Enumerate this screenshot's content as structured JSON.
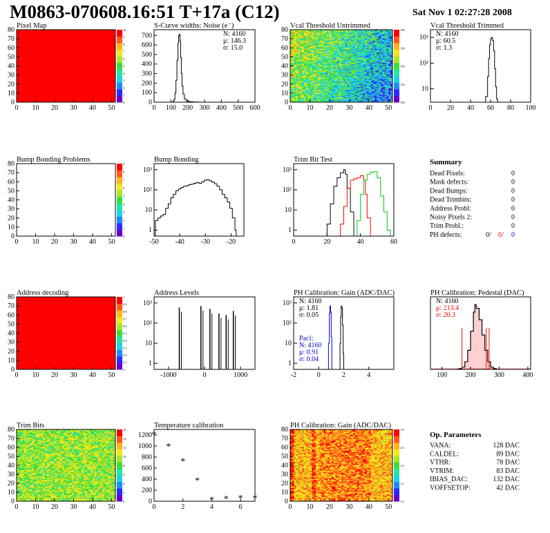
{
  "header": {
    "title": "M0863-070608.16:51 T+17a (C12)",
    "date": "Sat Nov  1 02:27:28 2008"
  },
  "chart_data": [
    {
      "id": "pixel-map",
      "type": "heatmap",
      "title": "Pixel Map",
      "xlim": [
        0,
        52
      ],
      "ylim": [
        0,
        80
      ],
      "xticks": [
        0,
        10,
        20,
        30,
        40,
        50
      ],
      "yticks": [
        0,
        10,
        20,
        30,
        40,
        50,
        60,
        70,
        80
      ],
      "fill": "uniform-red",
      "palette_ticks": [
        "0",
        "1",
        "2",
        "3",
        "4",
        "5",
        "6",
        "7",
        "8",
        "9",
        "10"
      ],
      "colors": {
        "fill": "#ff0000"
      }
    },
    {
      "id": "scurve-widths",
      "type": "histogram",
      "title": "S-Curve widths: Noise (e⁻)",
      "xlim": [
        0,
        600
      ],
      "ylim": [
        0,
        760
      ],
      "xticks": [
        0,
        100,
        200,
        300,
        400,
        500,
        600
      ],
      "yticks": [
        0,
        100,
        200,
        300,
        400,
        500,
        600,
        700
      ],
      "points": [
        [
          80,
          0
        ],
        [
          105,
          2
        ],
        [
          112,
          8
        ],
        [
          118,
          30
        ],
        [
          124,
          95
        ],
        [
          130,
          230
        ],
        [
          136,
          440
        ],
        [
          142,
          620
        ],
        [
          146,
          700
        ],
        [
          150,
          710
        ],
        [
          154,
          640
        ],
        [
          158,
          470
        ],
        [
          162,
          300
        ],
        [
          166,
          170
        ],
        [
          172,
          85
        ],
        [
          180,
          35
        ],
        [
          190,
          14
        ],
        [
          205,
          5
        ],
        [
          230,
          2
        ],
        [
          260,
          1
        ],
        [
          290,
          0
        ]
      ],
      "stats": {
        "N": "N: 4160",
        "mu": "μ: 146.3",
        "sigma": "σ: 15.0"
      }
    },
    {
      "id": "vcal-untrimmed",
      "type": "heatmap",
      "title": "Vcal Threshold Untrimmed",
      "xlim": [
        0,
        52
      ],
      "ylim": [
        0,
        80
      ],
      "xticks": [
        0,
        10,
        20,
        30,
        40,
        50
      ],
      "yticks": [
        0,
        10,
        20,
        30,
        40,
        50,
        60,
        70,
        80
      ],
      "fill": "noisy-green-to-blue",
      "palette_ticks": [
        "100",
        "110",
        "120",
        "130",
        "140"
      ]
    },
    {
      "id": "vcal-trimmed",
      "type": "histogram",
      "title": "Vcal Threshold Trimmed",
      "xlim": [
        0,
        100
      ],
      "yscale": "log",
      "ylim": [
        3,
        2000
      ],
      "xticks": [
        0,
        20,
        40,
        60,
        80,
        100
      ],
      "ytick_labels": [
        "10",
        "10²",
        "10³"
      ],
      "ytick_values": [
        10,
        100,
        1000
      ],
      "points": [
        [
          50,
          3
        ],
        [
          55,
          5
        ],
        [
          57,
          30
        ],
        [
          58,
          150
        ],
        [
          59,
          520
        ],
        [
          60,
          900
        ],
        [
          61,
          1000
        ],
        [
          62,
          750
        ],
        [
          63,
          300
        ],
        [
          64,
          60
        ],
        [
          65,
          12
        ],
        [
          66,
          4
        ],
        [
          67,
          3
        ]
      ],
      "stats": {
        "N": "N: 4160",
        "mu": "μ: 60.5",
        "sigma": "σ:  1.3"
      }
    },
    {
      "id": "bump-bonding-problems",
      "type": "heatmap",
      "title": "Bump Bonding Problems",
      "xlim": [
        0,
        52
      ],
      "ylim": [
        0,
        80
      ],
      "xticks": [
        0,
        10,
        20,
        30,
        40,
        50
      ],
      "yticks": [
        0,
        10,
        20,
        30,
        40,
        50,
        60,
        70,
        80
      ],
      "fill": "empty",
      "palette_ticks": [
        "0",
        "1",
        "2",
        "3",
        "4",
        "5",
        "6",
        "7",
        "8",
        "9"
      ]
    },
    {
      "id": "bump-bonding",
      "type": "histogram",
      "title": "Bump Bonding",
      "xlim": [
        -50,
        -15
      ],
      "yscale": "log",
      "ylim": [
        0.5,
        2000
      ],
      "xticks": [
        -50,
        -40,
        -30,
        -20
      ],
      "ytick_labels": [
        "1",
        "10",
        "10²",
        "10³"
      ],
      "ytick_values": [
        1,
        10,
        100,
        1000
      ],
      "points": [
        [
          -49.5,
          3
        ],
        [
          -48.5,
          4
        ],
        [
          -47.5,
          5
        ],
        [
          -46.5,
          6
        ],
        [
          -45.5,
          12
        ],
        [
          -44.5,
          20
        ],
        [
          -43.5,
          40
        ],
        [
          -42.5,
          60
        ],
        [
          -41.5,
          90
        ],
        [
          -40.5,
          110
        ],
        [
          -39.5,
          130
        ],
        [
          -38.5,
          150
        ],
        [
          -37.5,
          160
        ],
        [
          -36.5,
          180
        ],
        [
          -35.5,
          190
        ],
        [
          -34.5,
          210
        ],
        [
          -33.5,
          230
        ],
        [
          -32.5,
          210
        ],
        [
          -31.5,
          250
        ],
        [
          -30.5,
          300
        ],
        [
          -29.5,
          320
        ],
        [
          -28.5,
          280
        ],
        [
          -27.5,
          240
        ],
        [
          -26.5,
          200
        ],
        [
          -25.5,
          150
        ],
        [
          -24.5,
          100
        ],
        [
          -23.5,
          60
        ],
        [
          -22.5,
          40
        ],
        [
          -21.5,
          25
        ],
        [
          -20.5,
          12
        ],
        [
          -19.5,
          4
        ],
        [
          -18.5,
          1
        ],
        [
          -18,
          0.5
        ]
      ]
    },
    {
      "id": "trim-bit-test",
      "type": "histogram",
      "title": "Trim Bit Test",
      "xlim": [
        0,
        60
      ],
      "yscale": "log",
      "ylim": [
        0.5,
        2000
      ],
      "xticks": [
        0,
        20,
        40,
        60
      ],
      "ytick_labels": [
        "1",
        "10",
        "10²",
        "10³"
      ],
      "ytick_values": [
        1,
        10,
        100,
        1000
      ],
      "series": [
        {
          "color": "#000000",
          "points": [
            [
              18,
              0.5
            ],
            [
              20,
              2
            ],
            [
              22,
              20
            ],
            [
              24,
              150
            ],
            [
              26,
              400
            ],
            [
              28,
              700
            ],
            [
              30,
              1000
            ],
            [
              31,
              600
            ],
            [
              32,
              120
            ],
            [
              34,
              8
            ],
            [
              36,
              0.5
            ]
          ]
        },
        {
          "color": "#ff0000",
          "points": [
            [
              26,
              0.5
            ],
            [
              28,
              2
            ],
            [
              30,
              15
            ],
            [
              32,
              120
            ],
            [
              34,
              300
            ],
            [
              36,
              350
            ],
            [
              38,
              400
            ],
            [
              40,
              500
            ],
            [
              42,
              300
            ],
            [
              43,
              60
            ],
            [
              44,
              4
            ],
            [
              46,
              0.5
            ]
          ]
        },
        {
          "color": "#00cc00",
          "points": [
            [
              36,
              0.5
            ],
            [
              38,
              3
            ],
            [
              40,
              60
            ],
            [
              42,
              300
            ],
            [
              44,
              600
            ],
            [
              46,
              750
            ],
            [
              48,
              800
            ],
            [
              50,
              400
            ],
            [
              52,
              50
            ],
            [
              54,
              8
            ],
            [
              56,
              1
            ],
            [
              58,
              0.5
            ]
          ]
        }
      ]
    },
    {
      "id": "address-decoding",
      "type": "heatmap",
      "title": "Address decoding",
      "xlim": [
        0,
        52
      ],
      "ylim": [
        0,
        80
      ],
      "xticks": [
        0,
        10,
        20,
        30,
        40,
        50
      ],
      "yticks": [
        0,
        10,
        20,
        30,
        40,
        50,
        60,
        70,
        80
      ],
      "fill": "uniform-red",
      "palette_ticks": [
        "0",
        "0.1",
        "0.2",
        "0.3",
        "0.4",
        "0.5",
        "0.6",
        "0.7",
        "0.8",
        "0.9",
        "1"
      ],
      "colors": {
        "fill": "#ff0000"
      }
    },
    {
      "id": "address-levels",
      "type": "histogram",
      "title": "Address Levels",
      "xlim": [
        -1400,
        1400
      ],
      "yscale": "log",
      "ylim": [
        0.5,
        2000
      ],
      "xticks": [
        -1000,
        0,
        1000
      ],
      "ytick_labels": [
        "1",
        "10",
        "10²",
        "10³"
      ],
      "ytick_values": [
        1,
        10,
        100,
        1000
      ],
      "spikes": [
        [
          -700,
          600
        ],
        [
          -100,
          700
        ],
        [
          150,
          500
        ],
        [
          400,
          300
        ],
        [
          600,
          250
        ],
        [
          800,
          400
        ]
      ]
    },
    {
      "id": "ph-calibration-gain",
      "type": "histogram",
      "title": "PH Calibration: Gain (ADC/DAC)",
      "xlim": [
        -2,
        6
      ],
      "yscale": "log",
      "ylim": [
        0.5,
        2000
      ],
      "xticks": [
        -2,
        0,
        2,
        4
      ],
      "ytick_labels": [
        "1",
        "10",
        "10²",
        "10³"
      ],
      "ytick_values": [
        1,
        10,
        100,
        1000
      ],
      "series": [
        {
          "color": "#000000",
          "points": [
            [
              1.6,
              0.5
            ],
            [
              1.7,
              10
            ],
            [
              1.75,
              200
            ],
            [
              1.8,
              700
            ],
            [
              1.85,
              550
            ],
            [
              1.9,
              80
            ],
            [
              1.95,
              3
            ],
            [
              2.0,
              0.5
            ]
          ]
        },
        {
          "color": "#0000cc",
          "points": [
            [
              0.7,
              0.5
            ],
            [
              0.78,
              10
            ],
            [
              0.85,
              300
            ],
            [
              0.9,
              700
            ],
            [
              0.95,
              350
            ],
            [
              1.0,
              20
            ],
            [
              1.05,
              0.5
            ]
          ]
        }
      ],
      "stats": {
        "N": "N: 4160",
        "mu": "μ: 1.81",
        "sigma": "σ: 0.05"
      },
      "stats2": {
        "label": "Par1:",
        "N": "N: 4160",
        "mu": "μ: 0.91",
        "sigma": "σ: 0.04"
      }
    },
    {
      "id": "ph-calibration-pedestal",
      "type": "histogram",
      "title": "PH Calibration: Pedestal (DAC)",
      "xlim": [
        60,
        410
      ],
      "ylim": [
        0,
        95
      ],
      "xticks": [
        100,
        200,
        300,
        400
      ],
      "yticks": [],
      "points": [
        [
          150,
          0
        ],
        [
          160,
          1
        ],
        [
          170,
          3
        ],
        [
          180,
          10
        ],
        [
          190,
          25
        ],
        [
          200,
          50
        ],
        [
          210,
          75
        ],
        [
          215,
          85
        ],
        [
          220,
          80
        ],
        [
          230,
          65
        ],
        [
          240,
          45
        ],
        [
          250,
          25
        ],
        [
          260,
          10
        ],
        [
          270,
          3
        ],
        [
          280,
          1
        ],
        [
          290,
          0
        ]
      ],
      "markers_red": [
        170,
        255,
        265
      ],
      "stats": {
        "N": "N: 4160",
        "mu": "μ: 213.4",
        "sigma": "σ: 20.3"
      }
    },
    {
      "id": "trim-bits",
      "type": "heatmap",
      "title": "Trim Bits",
      "xlim": [
        0,
        52
      ],
      "ylim": [
        0,
        80
      ],
      "xticks": [
        0,
        10,
        20,
        30,
        40,
        50
      ],
      "yticks": [
        0,
        10,
        20,
        30,
        40,
        50,
        60,
        70,
        80
      ],
      "fill": "noisy-green-yellow",
      "palette_ticks": [
        "0",
        "2",
        "4",
        "6",
        "8",
        "10",
        "12",
        "14",
        "16"
      ]
    },
    {
      "id": "temperature-calibration",
      "type": "scatter",
      "title": "Temperature calibration",
      "xlim": [
        0,
        7
      ],
      "ylim": [
        0,
        1300
      ],
      "xticks": [
        0,
        2,
        4,
        6
      ],
      "yticks": [
        0,
        200,
        400,
        600,
        800,
        1000,
        1200
      ],
      "x": [
        0,
        1,
        2,
        3,
        4,
        5,
        6,
        7
      ],
      "y": [
        1210,
        1000,
        730,
        380,
        30,
        50,
        60,
        60
      ]
    },
    {
      "id": "ph-gain-map",
      "type": "heatmap",
      "title": "PH Calibration: Gain (ADC/DAC)",
      "xlim": [
        0,
        52
      ],
      "ylim": [
        0,
        80
      ],
      "xticks": [
        0,
        10,
        20,
        30,
        40,
        50
      ],
      "yticks": [
        0,
        10,
        20,
        30,
        40,
        50,
        60,
        70,
        80
      ],
      "fill": "noisy-yellow-red-columns",
      "palette_ticks": [
        "1.0",
        "1.2",
        "1.4",
        "1.6",
        "1.8"
      ]
    }
  ],
  "summary": {
    "title": "Summary",
    "rows": [
      {
        "label": "Dead Pixels:",
        "value": "0"
      },
      {
        "label": "Mask defects:",
        "value": "0"
      },
      {
        "label": "Dead Bumps:",
        "value": "0"
      },
      {
        "label": "Dead Trimbits:",
        "value": "0"
      },
      {
        "label": "Address Probl:",
        "value": "0"
      },
      {
        "label": "Noisy Pixels 2:",
        "value": "0"
      },
      {
        "label": "Trim Probl.:",
        "value": "0"
      }
    ],
    "ph_defects": {
      "label": "PH defects:",
      "black": "0/",
      "red": "0/",
      "blue": "0"
    }
  },
  "op_parameters": {
    "title": "Op. Parameters",
    "rows": [
      {
        "label": "VANA:",
        "value": "128 DAC"
      },
      {
        "label": "CALDEL:",
        "value": "89 DAC"
      },
      {
        "label": "VTHR:",
        "value": "78 DAC"
      },
      {
        "label": "VTRIM:",
        "value": "83 DAC"
      },
      {
        "label": "IBIAS_DAC:",
        "value": "132 DAC"
      },
      {
        "label": "VOFFSETOP:",
        "value": "42 DAC"
      }
    ]
  }
}
